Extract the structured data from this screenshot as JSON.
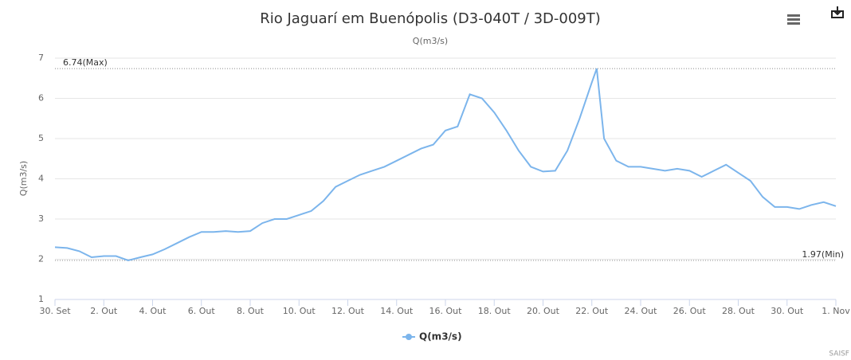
{
  "chart_data": {
    "type": "line",
    "title": "Rio Jaguarí em Buenópolis (D3-040T / 3D-009T)",
    "subtitle": "Q(m3/s)",
    "y_label": "Q(m3/s)",
    "credits": "SAISF",
    "xlim": [
      0,
      32
    ],
    "xticks": [
      {
        "value": 0,
        "label": "30. Set"
      },
      {
        "value": 2,
        "label": "2. Out"
      },
      {
        "value": 4,
        "label": "4. Out"
      },
      {
        "value": 6,
        "label": "6. Out"
      },
      {
        "value": 8,
        "label": "8. Out"
      },
      {
        "value": 10,
        "label": "10. Out"
      },
      {
        "value": 12,
        "label": "12. Out"
      },
      {
        "value": 14,
        "label": "14. Out"
      },
      {
        "value": 16,
        "label": "16. Out"
      },
      {
        "value": 18,
        "label": "18. Out"
      },
      {
        "value": 20,
        "label": "20. Out"
      },
      {
        "value": 22,
        "label": "22. Out"
      },
      {
        "value": 24,
        "label": "24. Out"
      },
      {
        "value": 26,
        "label": "26. Out"
      },
      {
        "value": 28,
        "label": "28. Out"
      },
      {
        "value": 30,
        "label": "30. Out"
      },
      {
        "value": 32,
        "label": "1. Nov"
      }
    ],
    "ylim": [
      1,
      7
    ],
    "yticks": [
      1,
      2,
      3,
      4,
      5,
      6,
      7
    ],
    "grid": true,
    "plot_lines": [
      {
        "value": 6.74,
        "label": "6.74(Max)"
      },
      {
        "value": 1.97,
        "label": "1.97(Min)"
      }
    ],
    "x": [
      0,
      0.5,
      1,
      1.5,
      2,
      2.5,
      3,
      3.5,
      4,
      4.5,
      5,
      5.5,
      6,
      6.5,
      7,
      7.5,
      8,
      8.5,
      9,
      9.5,
      10,
      10.5,
      11,
      11.5,
      12,
      12.5,
      13,
      13.5,
      14,
      14.5,
      15,
      15.5,
      16,
      16.5,
      17,
      17.5,
      18,
      18.5,
      19,
      19.5,
      20,
      20.5,
      21,
      21.5,
      22,
      22.2,
      22.5,
      23,
      23.5,
      24,
      24.5,
      25,
      25.5,
      26,
      26.5,
      27,
      27.5,
      28,
      28.5,
      29,
      29.5,
      30,
      30.5,
      31,
      31.5,
      32
    ],
    "series": [
      {
        "name": "Q(m3/s)",
        "color": "#7cb5ec",
        "values": [
          2.3,
          2.28,
          2.2,
          2.05,
          2.08,
          2.08,
          1.97,
          2.05,
          2.12,
          2.25,
          2.4,
          2.55,
          2.68,
          2.68,
          2.7,
          2.68,
          2.7,
          2.9,
          3.0,
          3.0,
          3.1,
          3.2,
          3.45,
          3.8,
          3.95,
          4.1,
          4.2,
          4.3,
          4.45,
          4.6,
          4.75,
          4.85,
          5.2,
          5.3,
          6.1,
          6.0,
          5.65,
          5.2,
          4.7,
          4.3,
          4.18,
          4.2,
          4.7,
          5.5,
          6.4,
          6.74,
          5.0,
          4.45,
          4.3,
          4.3,
          4.25,
          4.2,
          4.25,
          4.2,
          4.05,
          4.2,
          4.35,
          4.15,
          3.95,
          3.55,
          3.3,
          3.3,
          3.25,
          3.35,
          3.42,
          3.32
        ]
      }
    ],
    "legend": "bottom"
  }
}
